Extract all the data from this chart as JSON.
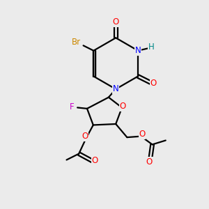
{
  "bg_color": "#ebebeb",
  "atom_colors": {
    "O": "#ff0000",
    "N": "#0000ff",
    "Br": "#cc8800",
    "F": "#cc00cc",
    "H": "#008888",
    "C": "#000000"
  },
  "figsize": [
    3.0,
    3.0
  ],
  "dpi": 100,
  "lw": 1.6,
  "fs": 8.5
}
